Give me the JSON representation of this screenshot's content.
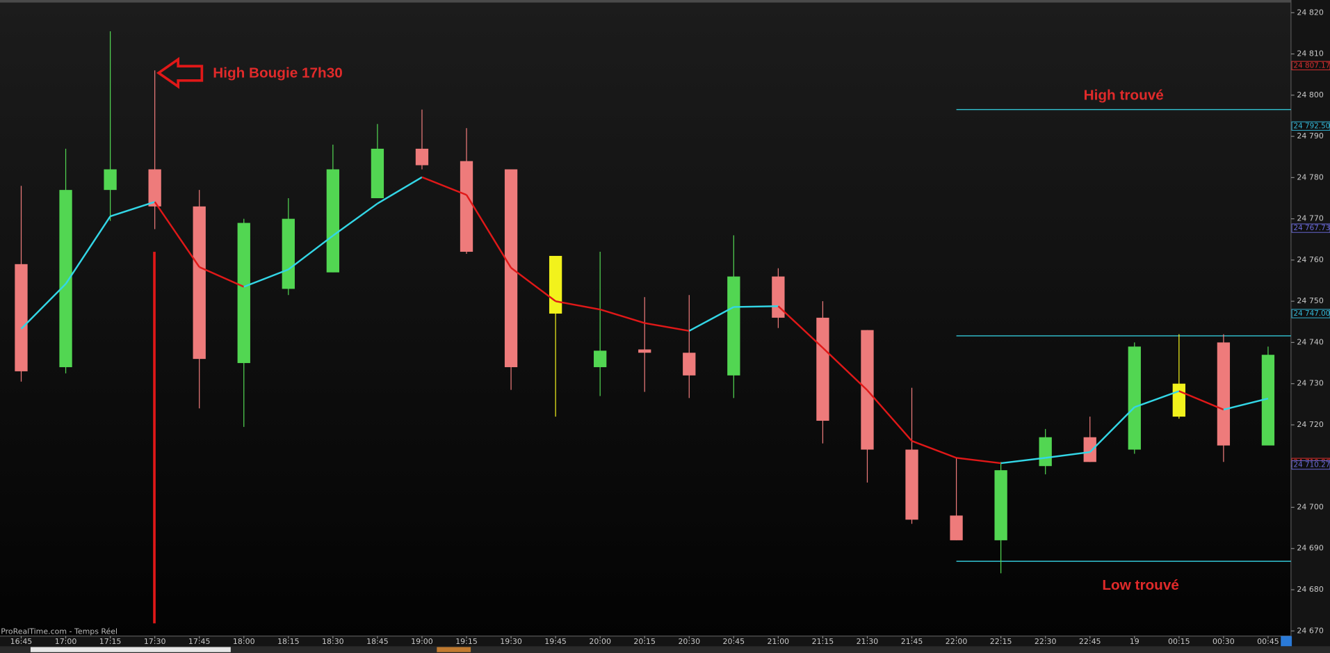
{
  "chart_data": {
    "type": "candlestick",
    "source": "ProRealTime.com - Temps Réel",
    "categories": [
      "16:45",
      "17:00",
      "17:15",
      "17:30",
      "17:45",
      "18:00",
      "18:15",
      "18:30",
      "18:45",
      "19:00",
      "19:15",
      "19:30",
      "19:45",
      "20:00",
      "20:15",
      "20:30",
      "20:45",
      "21:00",
      "21:15",
      "21:30",
      "21:45",
      "22:00",
      "22:15",
      "22:30",
      "22:45",
      "19",
      "00:15",
      "00:30",
      "00:45"
    ],
    "open": [
      24759,
      24734,
      24777,
      24782,
      24773,
      24735,
      24753,
      24757,
      24775,
      24787,
      24784,
      24782,
      24761,
      24734,
      24738.3,
      24737.5,
      24732,
      24756,
      24746,
      24743,
      24714,
      24698,
      24692,
      24710,
      24717,
      24714,
      24730,
      24740,
      24715
    ],
    "close": [
      24733,
      24777,
      24782,
      24773,
      24736,
      24769,
      24770,
      24782,
      24787,
      24783,
      24762,
      24734,
      24747,
      24738,
      24737.5,
      24732,
      24756,
      24746,
      24721,
      24714,
      24697,
      24692,
      24709,
      24717,
      24711,
      24739,
      24722,
      24715,
      24737
    ],
    "high": [
      24778,
      24787,
      24815.5,
      24806,
      24777,
      24770,
      24775,
      24788,
      24793,
      24796.5,
      24792,
      24782,
      24761,
      24762,
      24751,
      24751.5,
      24766,
      24758,
      24750,
      24743,
      24729,
      24712,
      24711,
      24719,
      24722,
      24740,
      24742,
      24742,
      24739
    ],
    "low": [
      24730.5,
      24732.5,
      24769.5,
      24767.5,
      24724,
      24719.5,
      24751.5,
      24757,
      24775,
      24782,
      24761.5,
      24728.5,
      24722,
      24727,
      24728,
      24726.5,
      24726.5,
      24743.5,
      24715.5,
      24706,
      24696,
      24692,
      24684,
      24708,
      24711,
      24713,
      24721.5,
      24711,
      24715.5
    ],
    "colors": [
      "#ee7b7b",
      "#52d652",
      "#52d652",
      "#ee7b7b",
      "#ee7b7b",
      "#52d652",
      "#52d652",
      "#52d652",
      "#52d652",
      "#ee7b7b",
      "#ee7b7b",
      "#ee7b7b",
      "#f2f21c",
      "#52d652",
      "#ee7b7b",
      "#ee7b7b",
      "#52d652",
      "#ee7b7b",
      "#ee7b7b",
      "#ee7b7b",
      "#ee7b7b",
      "#ee7b7b",
      "#52d652",
      "#52d652",
      "#ee7b7b",
      "#52d652",
      "#f2f21c",
      "#ee7b7b",
      "#52d652"
    ],
    "ma": {
      "values": [
        24743.3,
        24754.2,
        24770.6,
        24774.1,
        24758.3,
        24753.5,
        24757.7,
        24765.9,
        24773.7,
        24780.1,
        24775.8,
        24758.1,
        24750,
        24748,
        24744.7,
        24742.8,
        24748.6,
        24748.8,
        24738.7,
        24728.4,
        24716.1,
        24712,
        24710.7,
        24712,
        24713.4,
        24724.3,
        24728.2,
        24723.7,
        24726.4
      ],
      "up_color": "#33d6e6",
      "down_color": "#e01818"
    },
    "levels": [
      {
        "value": 24796.5,
        "start": "22:00",
        "text": "High trouvé",
        "color": "#33c6d6"
      },
      {
        "value": 24741.6,
        "start": "22:00",
        "color": "#33c6d6"
      },
      {
        "value": 24686.9,
        "start": "22:00",
        "text": "Low trouvé",
        "color": "#33c6d6"
      }
    ],
    "annotation": "High Bougie 17h30",
    "ylim": [
      24670,
      24820
    ],
    "yticks": [
      {
        "value": 24670,
        "label": "24 670"
      },
      {
        "value": 24680,
        "label": "24 680"
      },
      {
        "value": 24690,
        "label": "24 690"
      },
      {
        "value": 24700,
        "label": "24 700"
      },
      {
        "value": 24710,
        "label": "24 710"
      },
      {
        "value": 24720,
        "label": "24 720"
      },
      {
        "value": 24730,
        "label": "24 730"
      },
      {
        "value": 24740,
        "label": "24 740"
      },
      {
        "value": 24750,
        "label": "24 750"
      },
      {
        "value": 24760,
        "label": "24 760"
      },
      {
        "value": 24770,
        "label": "24 770"
      },
      {
        "value": 24780,
        "label": "24 780"
      },
      {
        "value": 24790,
        "label": "24 790"
      },
      {
        "value": 24800,
        "label": "24 800"
      },
      {
        "value": 24810,
        "label": "24 810"
      },
      {
        "value": 24820,
        "label": "24 820"
      }
    ],
    "price_tags": [
      {
        "value": 24807.17,
        "label": "24 807.17",
        "color": "#d83030"
      },
      {
        "value": 24792.5,
        "label": "24 792.50",
        "color": "#33b6d6"
      },
      {
        "value": 24767.73,
        "label": "24 767.73",
        "color": "#6a6ad8"
      },
      {
        "value": 24747.0,
        "label": "24 747.00",
        "color": "#33b6d6"
      },
      {
        "value": 24710.86,
        "label": "24 710.86",
        "color": "#d83030"
      },
      {
        "value": 24710.27,
        "label": "24 710.27",
        "color": "#6a6ad8"
      }
    ]
  }
}
